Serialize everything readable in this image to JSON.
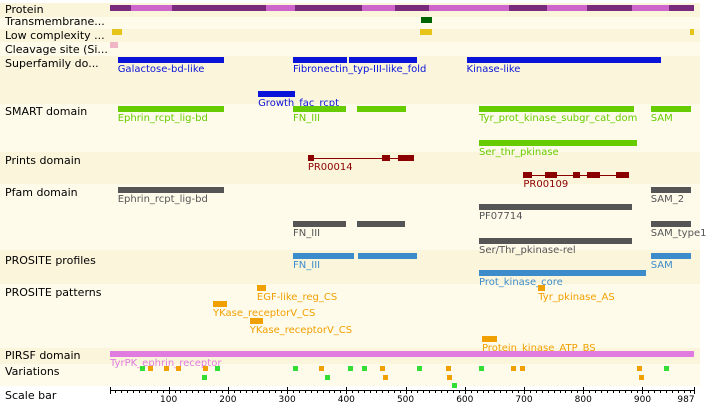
{
  "tracks": [
    {
      "id": "protein",
      "label": "Protein"
    },
    {
      "id": "tm",
      "label": "Transmembrane..."
    },
    {
      "id": "lowc",
      "label": "Low complexity ..."
    },
    {
      "id": "cleav",
      "label": "Cleavage site (Si..."
    },
    {
      "id": "superfamily",
      "label": "Superfamily do..."
    },
    {
      "id": "smart",
      "label": "SMART domain"
    },
    {
      "id": "prints",
      "label": "Prints domain"
    },
    {
      "id": "pfam",
      "label": "Pfam domain"
    },
    {
      "id": "prosite_profiles",
      "label": "PROSITE profiles"
    },
    {
      "id": "prosite_patterns",
      "label": "PROSITE patterns"
    },
    {
      "id": "pirsf",
      "label": "PIRSF domain"
    },
    {
      "id": "variations",
      "label": "Variations"
    },
    {
      "id": "scalebar",
      "label": "Scale bar"
    }
  ],
  "features": [
    {
      "track": "tm",
      "start": 526,
      "end": 545,
      "color": "#006400"
    },
    {
      "track": "lowc",
      "start": 5,
      "end": 22,
      "color": "#e6c419"
    },
    {
      "track": "lowc",
      "start": 524,
      "end": 545,
      "color": "#e6c419"
    },
    {
      "track": "lowc",
      "start": 980,
      "end": 987,
      "color": "#e6c419"
    },
    {
      "track": "cleav",
      "start": 1,
      "end": 14,
      "color": "#f0b6c8"
    },
    {
      "track": "superfamily",
      "row": 0,
      "start": 14,
      "end": 194,
      "color": "#0a14d8",
      "label": "Galactose-bd-like"
    },
    {
      "track": "superfamily",
      "row": 0,
      "start": 310,
      "end": 401,
      "color": "#0a14d8",
      "label": "Fibronectin_typ-III-like_fold"
    },
    {
      "track": "superfamily",
      "row": 0,
      "start": 404,
      "end": 519,
      "color": "#0a14d8"
    },
    {
      "track": "superfamily",
      "row": 0,
      "start": 603,
      "end": 932,
      "color": "#0a14d8",
      "label": "Kinase-like"
    },
    {
      "track": "superfamily",
      "row": 1,
      "start": 251,
      "end": 314,
      "color": "#0a14d8",
      "label": "Growth_fac_rcpt"
    },
    {
      "track": "smart",
      "row": 0,
      "start": 14,
      "end": 194,
      "color": "#66cc00",
      "label": "Ephrin_rcpt_lig-bd"
    },
    {
      "track": "smart",
      "row": 0,
      "start": 310,
      "end": 399,
      "color": "#66cc00",
      "label": "FN_III"
    },
    {
      "track": "smart",
      "row": 0,
      "start": 418,
      "end": 501,
      "color": "#66cc00"
    },
    {
      "track": "smart",
      "row": 0,
      "start": 624,
      "end": 885,
      "color": "#66cc00",
      "label": "Tyr_prot_kinase_subgr_cat_dom"
    },
    {
      "track": "smart",
      "row": 0,
      "start": 914,
      "end": 982,
      "color": "#66cc00",
      "label": "SAM"
    },
    {
      "track": "smart",
      "row": 1,
      "start": 624,
      "end": 891,
      "color": "#66cc00",
      "label": "Ser_thr_pkinase"
    },
    {
      "track": "prints",
      "row": 0,
      "start": 335,
      "end": 346,
      "color": "#8b0000",
      "label": "PR00014",
      "linkTo": 505
    },
    {
      "track": "prints",
      "row": 0,
      "start": 461,
      "end": 473,
      "color": "#8b0000"
    },
    {
      "track": "prints",
      "row": 0,
      "start": 487,
      "end": 515,
      "color": "#8b0000"
    },
    {
      "track": "prints",
      "row": 1,
      "start": 699,
      "end": 714,
      "color": "#8b0000",
      "label": "PR00109",
      "linkTo": 878
    },
    {
      "track": "prints",
      "row": 1,
      "start": 735,
      "end": 755,
      "color": "#8b0000"
    },
    {
      "track": "prints",
      "row": 1,
      "start": 782,
      "end": 794,
      "color": "#8b0000"
    },
    {
      "track": "prints",
      "row": 1,
      "start": 806,
      "end": 829,
      "color": "#8b0000"
    },
    {
      "track": "prints",
      "row": 1,
      "start": 855,
      "end": 878,
      "color": "#8b0000"
    },
    {
      "track": "pfam",
      "row": 0,
      "start": 14,
      "end": 194,
      "color": "#555555",
      "label": "Ephrin_rcpt_lig-bd"
    },
    {
      "track": "pfam",
      "row": 0,
      "start": 914,
      "end": 982,
      "color": "#555555",
      "label": "SAM_2"
    },
    {
      "track": "pfam",
      "row": 1,
      "start": 624,
      "end": 882,
      "color": "#555555",
      "label": "PF07714"
    },
    {
      "track": "pfam",
      "row": 2,
      "start": 310,
      "end": 399,
      "color": "#555555",
      "label": "FN_III"
    },
    {
      "track": "pfam",
      "row": 2,
      "start": 418,
      "end": 499,
      "color": "#555555"
    },
    {
      "track": "pfam",
      "row": 2,
      "start": 914,
      "end": 982,
      "color": "#555555",
      "label": "SAM_type1"
    },
    {
      "track": "pfam",
      "row": 3,
      "start": 624,
      "end": 882,
      "color": "#555555",
      "label": "Ser/Thr_pkinase-rel"
    },
    {
      "track": "prosite_profiles",
      "row": 0,
      "start": 310,
      "end": 413,
      "color": "#3c8ccb",
      "label": "FN_III"
    },
    {
      "track": "prosite_profiles",
      "row": 0,
      "start": 419,
      "end": 520,
      "color": "#3c8ccb"
    },
    {
      "track": "prosite_profiles",
      "row": 0,
      "start": 914,
      "end": 982,
      "color": "#3c8ccb",
      "label": "SAM"
    },
    {
      "track": "prosite_profiles",
      "row": 1,
      "start": 624,
      "end": 906,
      "color": "#3c8ccb",
      "label": "Prot_kinase_core"
    },
    {
      "track": "prosite_patterns",
      "row": 0,
      "start": 249,
      "end": 265,
      "color": "#f0a000",
      "label": "EGF-like_reg_CS"
    },
    {
      "track": "prosite_patterns",
      "row": 0,
      "start": 724,
      "end": 736,
      "color": "#f0a000",
      "label": "Tyr_pkinase_AS"
    },
    {
      "track": "prosite_patterns",
      "row": 1,
      "start": 175,
      "end": 198,
      "color": "#f0a000",
      "label": "YKase_receptorV_CS"
    },
    {
      "track": "prosite_patterns",
      "row": 2,
      "start": 237,
      "end": 259,
      "color": "#f0a000",
      "label": "YKase_receptorV_CS"
    },
    {
      "track": "prosite_patterns",
      "row": 3,
      "start": 629,
      "end": 655,
      "color": "#f0a000",
      "label": "Protein_kinase_ATP_BS"
    },
    {
      "track": "pirsf",
      "row": 0,
      "start": 1,
      "end": 987,
      "color": "#e07be0",
      "label": "TyrPK_ephrin_receptor"
    }
  ],
  "variations": [
    {
      "pos": 55,
      "row": 0,
      "color": "#33dd33"
    },
    {
      "pos": 68,
      "row": 0,
      "color": "#f0a000"
    },
    {
      "pos": 95,
      "row": 0,
      "color": "#f0a000"
    },
    {
      "pos": 115,
      "row": 0,
      "color": "#f0a000"
    },
    {
      "pos": 161,
      "row": 0,
      "color": "#f0a000"
    },
    {
      "pos": 182,
      "row": 0,
      "color": "#33dd33"
    },
    {
      "pos": 160,
      "row": 1,
      "color": "#33dd33"
    },
    {
      "pos": 314,
      "row": 0,
      "color": "#33dd33"
    },
    {
      "pos": 358,
      "row": 0,
      "color": "#f0a000"
    },
    {
      "pos": 367,
      "row": 1,
      "color": "#33dd33"
    },
    {
      "pos": 407,
      "row": 0,
      "color": "#33dd33"
    },
    {
      "pos": 429,
      "row": 0,
      "color": "#33dd33"
    },
    {
      "pos": 460,
      "row": 0,
      "color": "#f0a000"
    },
    {
      "pos": 466,
      "row": 1,
      "color": "#f0a000"
    },
    {
      "pos": 523,
      "row": 0,
      "color": "#33dd33"
    },
    {
      "pos": 571,
      "row": 0,
      "color": "#f0a000"
    },
    {
      "pos": 573,
      "row": 1,
      "color": "#f0a000"
    },
    {
      "pos": 582,
      "row": 2,
      "color": "#33dd33"
    },
    {
      "pos": 627,
      "row": 0,
      "color": "#33dd33"
    },
    {
      "pos": 681,
      "row": 0,
      "color": "#f0a000"
    },
    {
      "pos": 696,
      "row": 0,
      "color": "#f0a000"
    },
    {
      "pos": 894,
      "row": 0,
      "color": "#f0a000"
    },
    {
      "pos": 897,
      "row": 1,
      "color": "#f0a000"
    },
    {
      "pos": 940,
      "row": 0,
      "color": "#33dd33"
    }
  ],
  "protein_segments": [
    {
      "start": 1,
      "end": 36,
      "color": "#7a2a7a"
    },
    {
      "start": 36,
      "end": 106,
      "color": "#cc66cc"
    },
    {
      "start": 106,
      "end": 264,
      "color": "#7a2a7a"
    },
    {
      "start": 264,
      "end": 314,
      "color": "#cc66cc"
    },
    {
      "start": 314,
      "end": 426,
      "color": "#7a2a7a"
    },
    {
      "start": 426,
      "end": 482,
      "color": "#cc66cc"
    },
    {
      "start": 482,
      "end": 540,
      "color": "#7a2a7a"
    },
    {
      "start": 540,
      "end": 674,
      "color": "#cc66cc"
    },
    {
      "start": 674,
      "end": 738,
      "color": "#7a2a7a"
    },
    {
      "start": 738,
      "end": 806,
      "color": "#cc66cc"
    },
    {
      "start": 806,
      "end": 882,
      "color": "#7a2a7a"
    },
    {
      "start": 882,
      "end": 945,
      "color": "#cc66cc"
    },
    {
      "start": 945,
      "end": 987,
      "color": "#7a2a7a"
    }
  ],
  "scale": {
    "min": 1,
    "max": 987,
    "ticks": [
      100,
      200,
      300,
      400,
      500,
      600,
      700,
      800,
      900,
      987
    ],
    "tick_labels": [
      "100",
      "200",
      "300",
      "400",
      "500",
      "600",
      "700",
      "800",
      "900",
      "987"
    ]
  },
  "colors": {
    "band_light": "#fffbeb",
    "band_dark": "#fbf5dc",
    "connector": "#8b0000"
  }
}
